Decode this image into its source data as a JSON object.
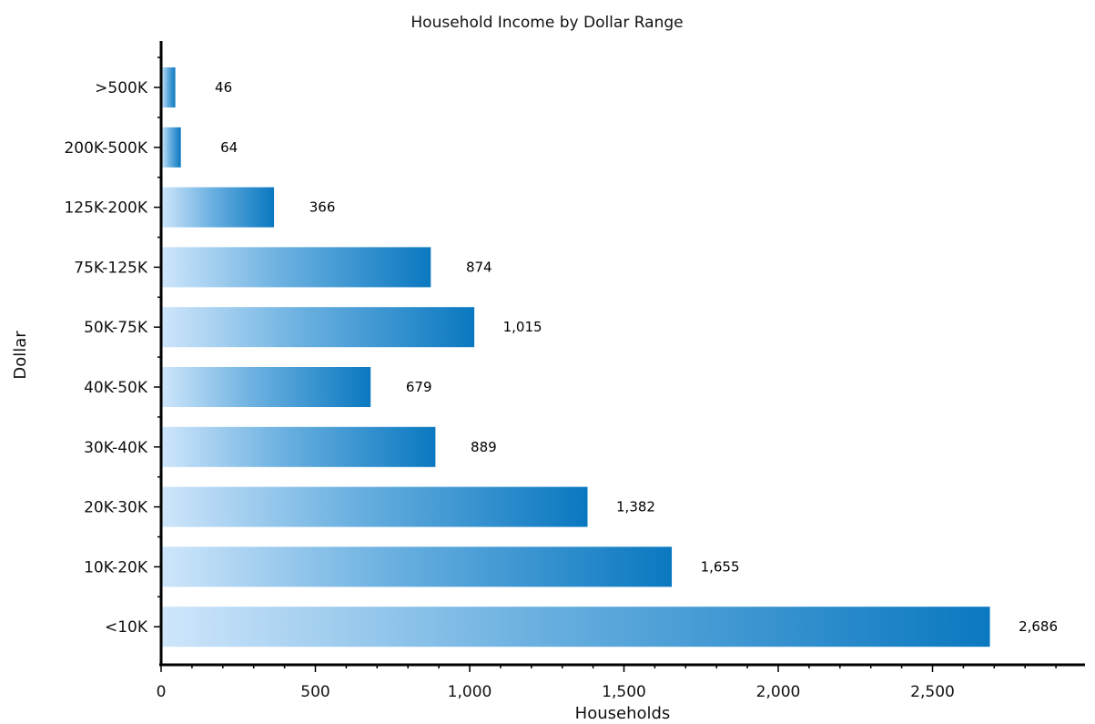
{
  "chart_data": {
    "type": "bar",
    "orientation": "horizontal",
    "title": "Household Income by Dollar Range",
    "xlabel": "Households",
    "ylabel": "Dollar",
    "categories": [
      ">500K",
      "200K-500K",
      "125K-200K",
      "75K-125K",
      "50K-75K",
      "40K-50K",
      "30K-40K",
      "20K-30K",
      "10K-20K",
      "<10K"
    ],
    "values": [
      46,
      64,
      366,
      874,
      1015,
      679,
      889,
      1382,
      1655,
      2686
    ],
    "value_labels": [
      "46",
      "64",
      "366",
      "874",
      "1,015",
      "679",
      "889",
      "1,382",
      "1,655",
      "2,686"
    ],
    "x_ticks": [
      0,
      500,
      1000,
      1500,
      2000,
      2500
    ],
    "x_tick_labels": [
      "0",
      "500",
      "1,000",
      "1,500",
      "2,000",
      "2,500"
    ],
    "xlim": [
      0,
      3000
    ],
    "grid": false,
    "legend": "none",
    "colors": {
      "bar_light": "#cfe6fb",
      "bar_mid": "#6ab0e0",
      "bar_dark": "#0a78c0",
      "axis": "#000000"
    }
  }
}
